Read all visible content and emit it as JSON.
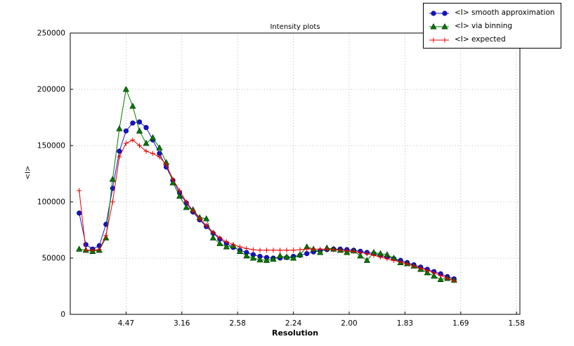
{
  "chart_data": {
    "type": "line",
    "title": "Intensity plots",
    "xlabel": "Resolution",
    "ylabel": "<I>",
    "xlim": [
      0,
      0.403
    ],
    "ylim": [
      0,
      250000
    ],
    "grid": true,
    "legend_position": "upper right (outside top of axes)",
    "xticks": {
      "positions": [
        0.05,
        0.1,
        0.15,
        0.2,
        0.25,
        0.3,
        0.35,
        0.4
      ],
      "labels": [
        "4.47",
        "3.16",
        "2.58",
        "2.24",
        "2.00",
        "1.83",
        "1.69",
        "1.58"
      ]
    },
    "yticks": {
      "positions": [
        0,
        50000,
        100000,
        150000,
        200000,
        250000
      ],
      "labels": [
        "0",
        "50000",
        "100000",
        "150000",
        "200000",
        "250000"
      ]
    },
    "x": [
      0.008,
      0.014,
      0.02,
      0.026,
      0.032,
      0.038,
      0.044,
      0.05,
      0.056,
      0.062,
      0.068,
      0.074,
      0.08,
      0.086,
      0.092,
      0.098,
      0.104,
      0.11,
      0.116,
      0.122,
      0.128,
      0.134,
      0.14,
      0.146,
      0.152,
      0.158,
      0.164,
      0.17,
      0.176,
      0.182,
      0.188,
      0.194,
      0.2,
      0.206,
      0.212,
      0.218,
      0.224,
      0.23,
      0.236,
      0.242,
      0.248,
      0.254,
      0.26,
      0.266,
      0.272,
      0.278,
      0.284,
      0.29,
      0.296,
      0.302,
      0.308,
      0.314,
      0.32,
      0.326,
      0.332,
      0.338,
      0.344
    ],
    "series": [
      {
        "name": "<I> smooth approximation",
        "color": "#1515cc",
        "edge": "#00008b",
        "marker": "circle",
        "values": [
          90000,
          62000,
          58000,
          61000,
          80000,
          112000,
          145000,
          163000,
          170000,
          171000,
          166000,
          155000,
          143000,
          131000,
          119000,
          108000,
          99000,
          91000,
          84000,
          78000,
          72000,
          67000,
          63000,
          59500,
          57000,
          55000,
          53000,
          51500,
          50500,
          50000,
          50000,
          50500,
          51500,
          52500,
          54000,
          55500,
          56500,
          57500,
          58000,
          58000,
          57500,
          57000,
          56000,
          55000,
          54000,
          52500,
          51000,
          49500,
          48000,
          46000,
          44000,
          42000,
          40000,
          38000,
          36000,
          33500,
          31500
        ]
      },
      {
        "name": "<I> via binning",
        "color": "#007a00",
        "edge": "#003300",
        "marker": "triangle",
        "values": [
          58000,
          57000,
          56000,
          57000,
          68000,
          120000,
          165000,
          200000,
          185000,
          163000,
          152000,
          157000,
          148000,
          135000,
          117000,
          105000,
          95000,
          93000,
          86000,
          85000,
          68000,
          63000,
          60000,
          61000,
          56000,
          52000,
          50000,
          48500,
          48000,
          49000,
          52000,
          51000,
          50000,
          53000,
          60000,
          58000,
          55000,
          59000,
          58000,
          57000,
          55000,
          56500,
          52000,
          48000,
          55000,
          54000,
          53000,
          50000,
          46000,
          45000,
          43000,
          40000,
          37000,
          34000,
          31000,
          32000,
          30500
        ]
      },
      {
        "name": "<I> expected",
        "color": "#e60000",
        "edge": "#e60000",
        "marker": "plus",
        "values": [
          110000,
          57000,
          57000,
          57500,
          70000,
          100000,
          140000,
          152000,
          155000,
          150000,
          145000,
          143000,
          140000,
          133000,
          120000,
          110000,
          100000,
          92000,
          85000,
          79000,
          73000,
          68000,
          64500,
          62000,
          60000,
          58500,
          57500,
          57000,
          57000,
          57000,
          57000,
          57000,
          57000,
          57500,
          58000,
          58000,
          58000,
          58000,
          57500,
          57000,
          56500,
          56000,
          55000,
          54000,
          52500,
          51000,
          49500,
          48000,
          46500,
          45000,
          43000,
          41000,
          39000,
          37000,
          34500,
          32000,
          30000
        ]
      }
    ]
  }
}
